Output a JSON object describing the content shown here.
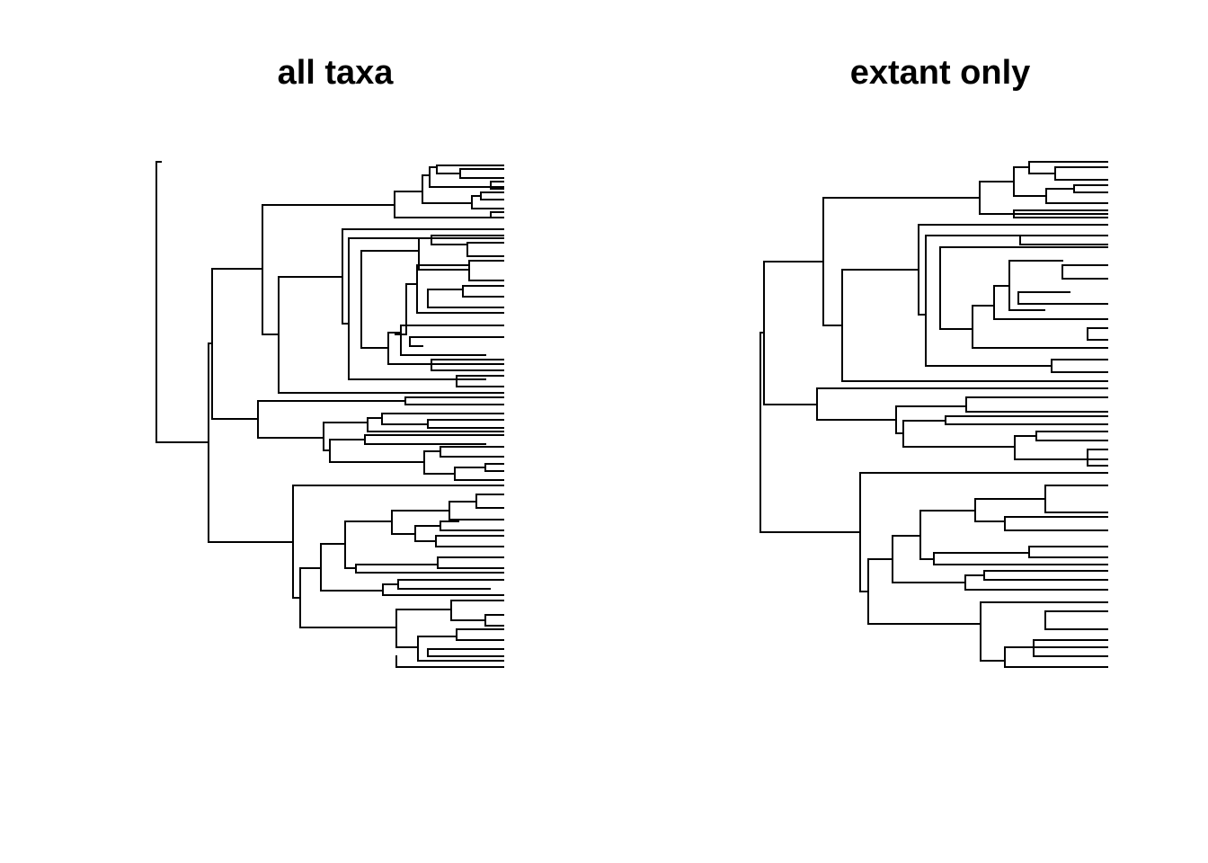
{
  "panels": [
    {
      "title": "all taxa"
    },
    {
      "title": "extant only"
    }
  ],
  "colors": {
    "background": "#ffffff",
    "branch": "#000000"
  }
}
